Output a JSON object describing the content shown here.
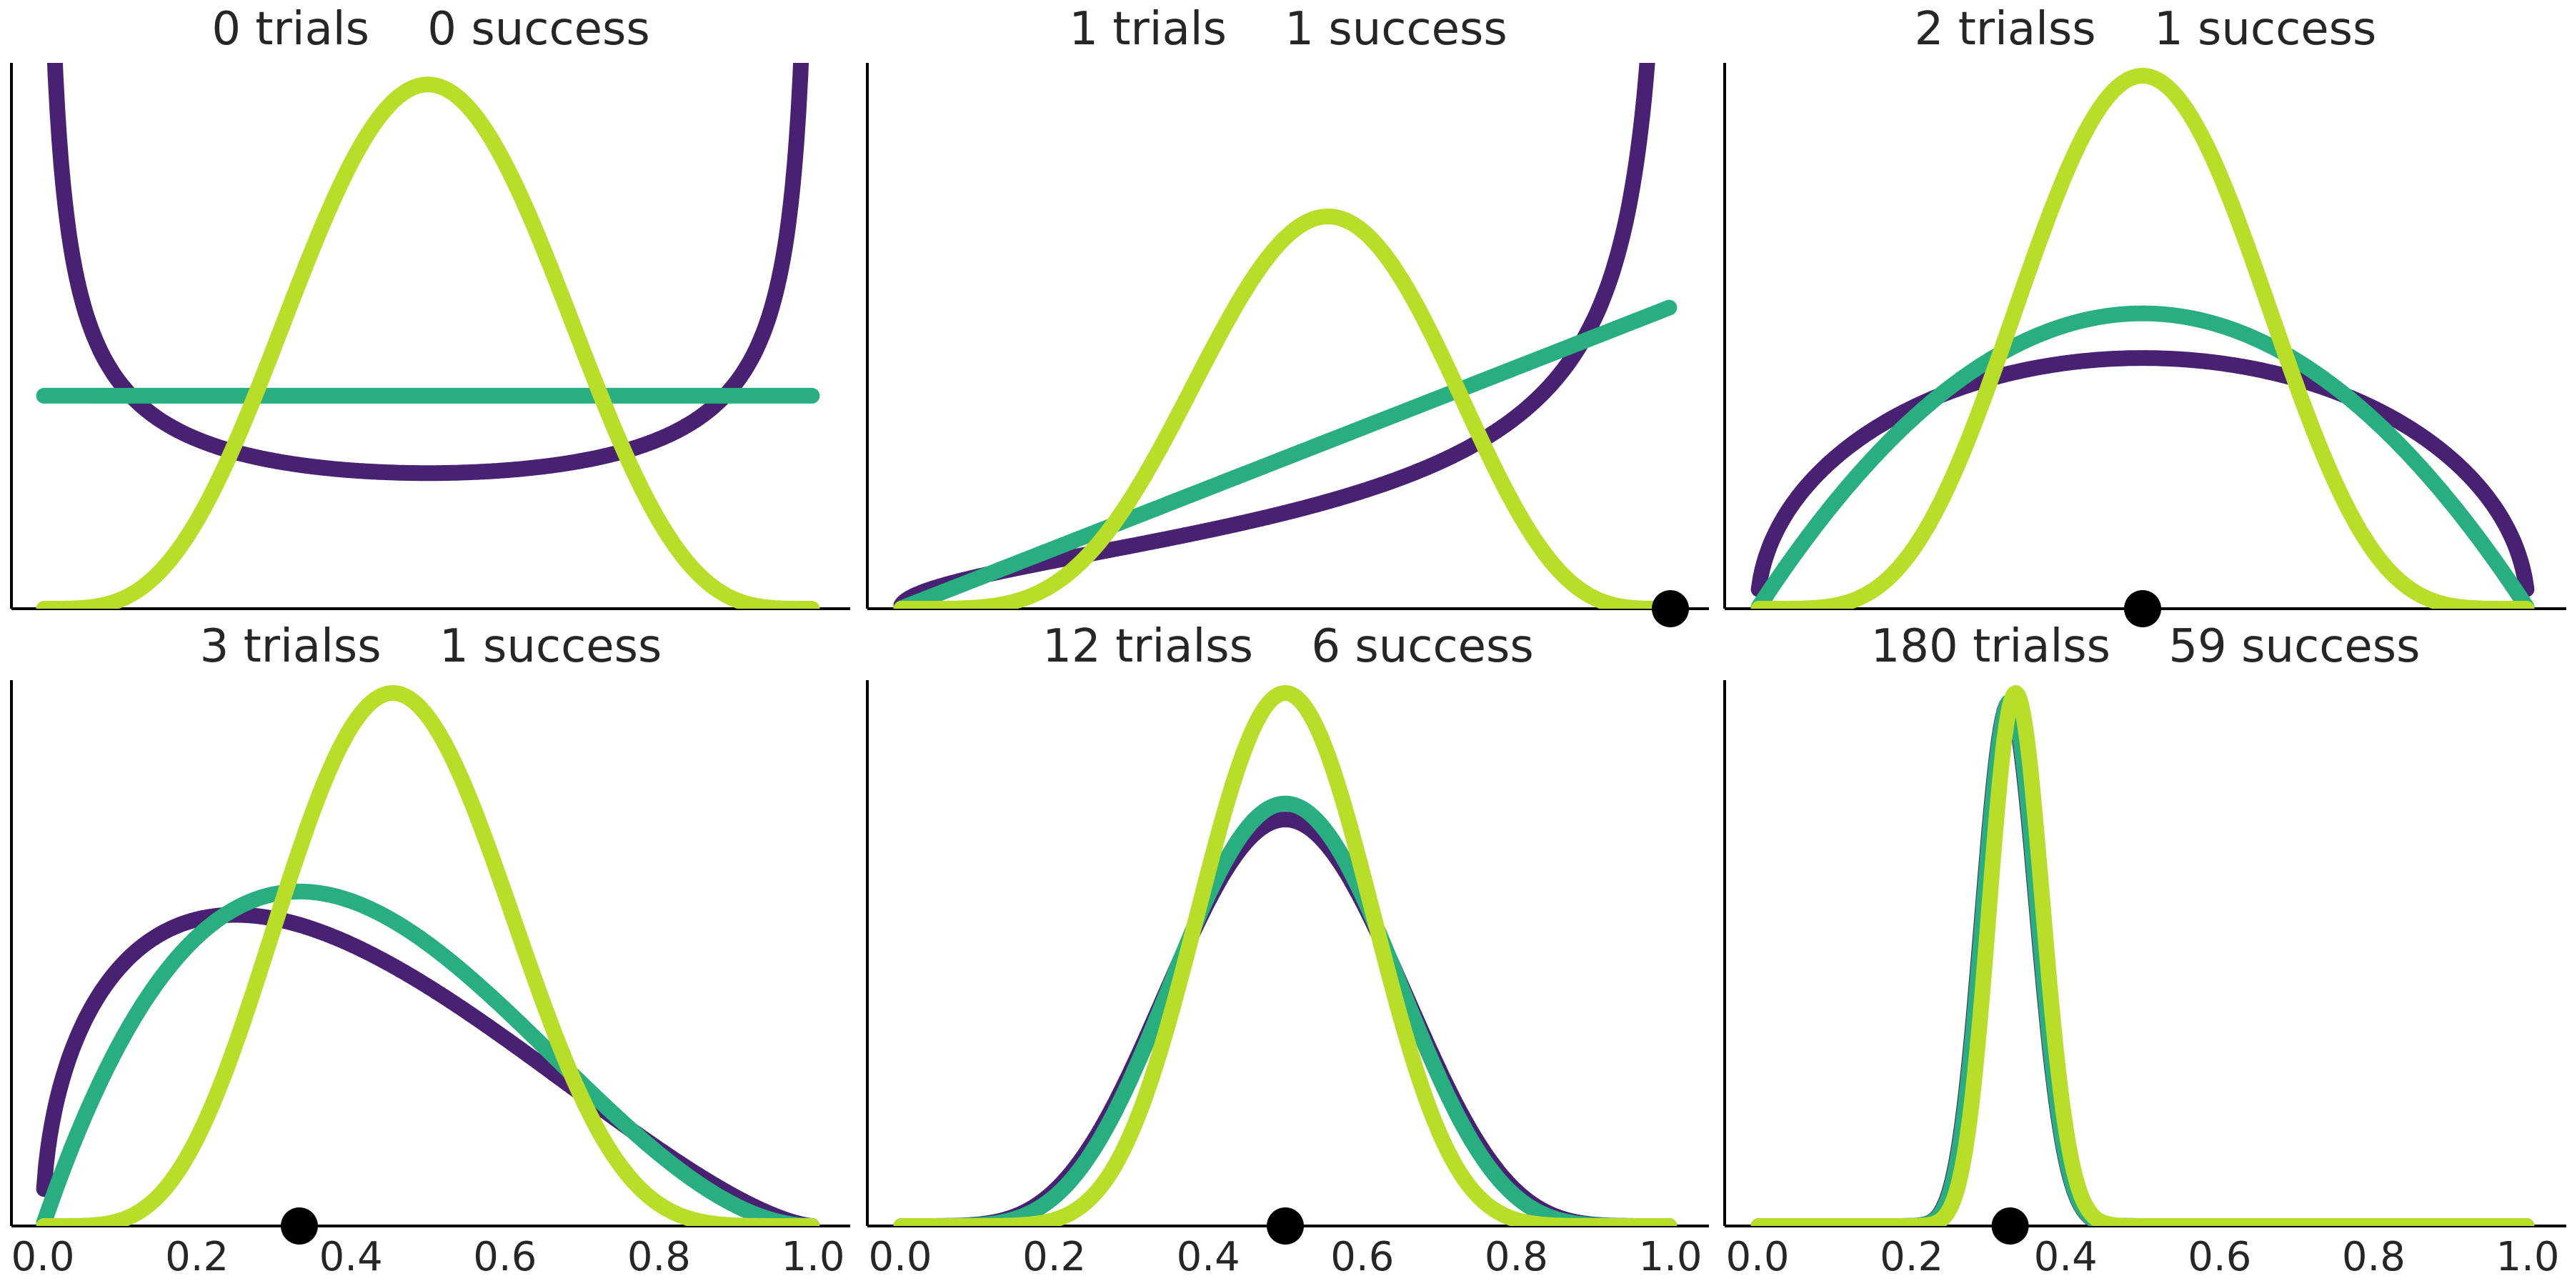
{
  "chart_data": [
    {
      "type": "line",
      "title": "0 trials    0 success",
      "trials": 0,
      "success": 0,
      "series": [
        {
          "name": "",
          "prior": [
            0.5,
            0.5
          ],
          "color": "#482173"
        },
        {
          "name": "",
          "prior": [
            1,
            1
          ],
          "color": "#29AF7F"
        },
        {
          "name": "",
          "prior": [
            5,
            5
          ],
          "color": "#B8DE29"
        }
      ],
      "observed_proportion": null,
      "xlim": [
        0,
        1
      ],
      "xticks": [],
      "grid": false,
      "yticks": false
    },
    {
      "type": "line",
      "title": "1 trials    1 success",
      "trials": 1,
      "success": 1,
      "series": [
        {
          "name": "",
          "prior": [
            0.5,
            0.5
          ],
          "color": "#482173"
        },
        {
          "name": "",
          "prior": [
            1,
            1
          ],
          "color": "#29AF7F"
        },
        {
          "name": "",
          "prior": [
            5,
            5
          ],
          "color": "#B8DE29"
        }
      ],
      "observed_proportion": 1.0,
      "xlim": [
        0,
        1
      ],
      "xticks": [],
      "grid": false,
      "yticks": false
    },
    {
      "type": "line",
      "title": "2 trialss    1 success",
      "trials": 2,
      "success": 1,
      "series": [
        {
          "name": "",
          "prior": [
            0.5,
            0.5
          ],
          "color": "#482173"
        },
        {
          "name": "",
          "prior": [
            1,
            1
          ],
          "color": "#29AF7F"
        },
        {
          "name": "",
          "prior": [
            5,
            5
          ],
          "color": "#B8DE29"
        }
      ],
      "observed_proportion": 0.5,
      "xlim": [
        0,
        1
      ],
      "xticks": [],
      "grid": false,
      "yticks": false
    },
    {
      "type": "line",
      "title": "3 trialss    1 success",
      "trials": 3,
      "success": 1,
      "series": [
        {
          "name": "",
          "prior": [
            0.5,
            0.5
          ],
          "color": "#482173"
        },
        {
          "name": "",
          "prior": [
            1,
            1
          ],
          "color": "#29AF7F"
        },
        {
          "name": "",
          "prior": [
            5,
            5
          ],
          "color": "#B8DE29"
        }
      ],
      "observed_proportion": 0.333,
      "xlim": [
        0,
        1
      ],
      "xticks": [
        "0.0",
        "0.2",
        "0.4",
        "0.6",
        "0.8",
        "1.0"
      ],
      "grid": false,
      "yticks": false
    },
    {
      "type": "line",
      "title": "12 trialss    6 success",
      "trials": 12,
      "success": 6,
      "series": [
        {
          "name": "",
          "prior": [
            0.5,
            0.5
          ],
          "color": "#482173"
        },
        {
          "name": "",
          "prior": [
            1,
            1
          ],
          "color": "#29AF7F"
        },
        {
          "name": "",
          "prior": [
            5,
            5
          ],
          "color": "#B8DE29"
        }
      ],
      "observed_proportion": 0.5,
      "xlim": [
        0,
        1
      ],
      "xticks": [
        "0.0",
        "0.2",
        "0.4",
        "0.6",
        "0.8",
        "1.0"
      ],
      "grid": false,
      "yticks": false
    },
    {
      "type": "line",
      "title": "180 trialss    59 success",
      "trials": 180,
      "success": 59,
      "series": [
        {
          "name": "",
          "prior": [
            0.5,
            0.5
          ],
          "color": "#482173"
        },
        {
          "name": "",
          "prior": [
            1,
            1
          ],
          "color": "#29AF7F"
        },
        {
          "name": "",
          "prior": [
            5,
            5
          ],
          "color": "#B8DE29"
        }
      ],
      "observed_proportion": 0.328,
      "xlim": [
        0,
        1
      ],
      "xticks": [
        "0.0",
        "0.2",
        "0.4",
        "0.6",
        "0.8",
        "1.0"
      ],
      "grid": false,
      "yticks": false
    }
  ]
}
